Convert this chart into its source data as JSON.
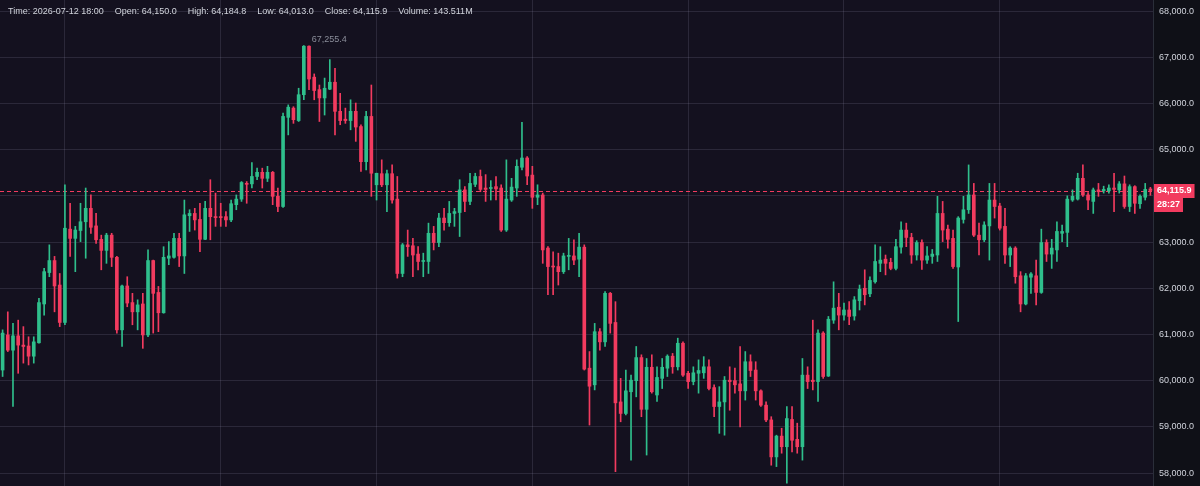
{
  "chart_data": {
    "type": "candlestick",
    "categories": [
      null,
      null,
      null,
      null,
      null,
      null,
      null,
      null,
      null,
      null,
      null,
      null,
      null,
      null,
      null,
      null,
      null,
      null,
      null,
      null,
      null,
      null,
      null,
      null,
      null,
      null,
      null,
      null,
      null,
      null,
      null,
      null,
      null,
      null,
      null,
      null,
      null,
      null,
      null,
      null,
      null,
      null,
      null,
      null,
      null,
      null,
      null,
      null,
      null,
      null,
      null,
      null,
      null,
      null,
      null,
      null,
      null,
      null,
      null,
      null,
      null,
      null,
      null,
      null,
      null,
      null,
      null,
      null,
      null,
      null,
      null,
      null,
      null,
      null,
      null,
      null,
      null,
      null,
      null,
      null,
      null,
      null,
      null,
      null,
      null,
      null,
      null,
      null,
      null,
      null,
      null,
      null,
      null,
      null,
      null,
      null,
      null,
      null,
      null,
      null,
      null,
      null,
      null,
      null,
      null,
      null,
      null,
      null,
      null,
      null,
      null,
      null,
      null,
      null,
      null,
      null,
      null,
      null,
      null,
      null,
      null,
      null,
      null,
      null,
      null,
      null,
      null,
      null,
      null,
      null,
      null,
      null,
      null,
      null,
      null,
      null,
      null,
      null,
      null,
      null,
      null,
      null,
      null,
      null,
      null,
      null,
      null,
      null,
      null,
      null,
      null,
      null,
      null,
      null,
      null,
      null,
      null,
      null,
      null,
      null,
      null,
      null,
      null,
      null,
      null,
      null,
      null,
      null,
      null,
      null,
      null,
      null,
      null,
      null,
      null,
      null,
      null,
      null,
      null,
      null,
      null,
      null,
      null,
      null,
      null,
      null,
      null,
      null,
      null,
      null,
      null,
      null,
      null,
      null,
      null,
      null,
      null,
      null,
      null,
      null,
      null,
      null,
      null,
      null,
      null,
      null,
      null,
      null,
      null,
      null,
      null,
      null,
      null,
      null,
      null,
      null,
      null,
      null,
      null,
      null,
      null,
      null
    ],
    "ohlc": [
      [
        60230,
        61100,
        60090,
        61030
      ],
      [
        60990,
        61490,
        60630,
        60660
      ],
      [
        60660,
        61240,
        59440,
        60970
      ],
      [
        60970,
        61310,
        60160,
        60770
      ],
      [
        60770,
        61170,
        60380,
        60740
      ],
      [
        60750,
        60950,
        60340,
        60530
      ],
      [
        60530,
        60950,
        60380,
        60840
      ],
      [
        60820,
        61780,
        60810,
        61690
      ],
      [
        61660,
        62430,
        61420,
        62360
      ],
      [
        62340,
        62940,
        62250,
        62600
      ],
      [
        62600,
        62690,
        61490,
        62050
      ],
      [
        62070,
        62320,
        61170,
        61260
      ],
      [
        61260,
        64240,
        61210,
        63300
      ],
      [
        63280,
        63840,
        62690,
        63080
      ],
      [
        63080,
        63340,
        62360,
        63260
      ],
      [
        63250,
        63840,
        63010,
        63440
      ],
      [
        63440,
        64170,
        62650,
        63730
      ],
      [
        63730,
        64020,
        63190,
        63320
      ],
      [
        63350,
        63620,
        62970,
        63050
      ],
      [
        63060,
        63150,
        62400,
        62820
      ],
      [
        62820,
        63190,
        62540,
        63150
      ],
      [
        63150,
        63190,
        62470,
        62670
      ],
      [
        62670,
        62690,
        61030,
        61100
      ],
      [
        61100,
        62070,
        60740,
        62050
      ],
      [
        62050,
        62250,
        61600,
        61680
      ],
      [
        61690,
        61890,
        61210,
        61490
      ],
      [
        61490,
        61750,
        61100,
        61640
      ],
      [
        61660,
        61890,
        60700,
        60990
      ],
      [
        60990,
        62830,
        60950,
        62600
      ],
      [
        62600,
        62610,
        61030,
        61890
      ],
      [
        61910,
        62040,
        61060,
        61470
      ],
      [
        61470,
        62900,
        61460,
        62670
      ],
      [
        62650,
        63010,
        62510,
        62700
      ],
      [
        62670,
        63190,
        62650,
        63080
      ],
      [
        63080,
        63190,
        62470,
        62700
      ],
      [
        62700,
        63910,
        62320,
        63590
      ],
      [
        63570,
        63700,
        63230,
        63620
      ],
      [
        63620,
        63730,
        63260,
        63480
      ],
      [
        63490,
        63840,
        62790,
        63060
      ],
      [
        63060,
        63880,
        63050,
        63730
      ],
      [
        63730,
        64350,
        63050,
        63550
      ],
      [
        63550,
        64060,
        63340,
        63530
      ],
      [
        63550,
        63840,
        63340,
        63530
      ],
      [
        63550,
        63660,
        63340,
        63480
      ],
      [
        63480,
        63910,
        63440,
        63830
      ],
      [
        63810,
        64020,
        63700,
        63930
      ],
      [
        63930,
        64310,
        63880,
        64290
      ],
      [
        64270,
        64310,
        63840,
        64250
      ],
      [
        64260,
        64720,
        64170,
        64420
      ],
      [
        64420,
        64600,
        64350,
        64510
      ],
      [
        64510,
        64600,
        64170,
        64380
      ],
      [
        64380,
        64640,
        64310,
        64510
      ],
      [
        64510,
        64530,
        63810,
        63990
      ],
      [
        63990,
        64170,
        63660,
        63770
      ],
      [
        63770,
        65790,
        63750,
        65720
      ],
      [
        65700,
        65970,
        65320,
        65920
      ],
      [
        65900,
        65930,
        65570,
        65650
      ],
      [
        65630,
        66330,
        65610,
        66190
      ],
      [
        66190,
        67255.4,
        66080,
        67240
      ],
      [
        67240,
        67250,
        66300,
        66530
      ],
      [
        66570,
        66640,
        66080,
        66280
      ],
      [
        66300,
        66400,
        65610,
        66120
      ],
      [
        66120,
        66550,
        65750,
        66330
      ],
      [
        66310,
        66950,
        66300,
        66460
      ],
      [
        66460,
        66760,
        65320,
        65830
      ],
      [
        65830,
        66220,
        65540,
        65630
      ],
      [
        65660,
        65900,
        65570,
        65630
      ],
      [
        65630,
        66080,
        65430,
        65830
      ],
      [
        65830,
        66010,
        65180,
        65490
      ],
      [
        65500,
        65540,
        64530,
        64740
      ],
      [
        64740,
        65830,
        64560,
        65720
      ],
      [
        65720,
        66400,
        63990,
        64490
      ],
      [
        64240,
        64490,
        63910,
        64490
      ],
      [
        64480,
        64780,
        64200,
        64240
      ],
      [
        64240,
        64560,
        63660,
        64480
      ],
      [
        64480,
        64670,
        63840,
        63910
      ],
      [
        63930,
        64420,
        62220,
        62320
      ],
      [
        62320,
        62970,
        62250,
        62940
      ],
      [
        62940,
        63260,
        62690,
        62900
      ],
      [
        62920,
        63080,
        62250,
        62720
      ],
      [
        62740,
        62900,
        62400,
        62580
      ],
      [
        62580,
        62760,
        62250,
        62600
      ],
      [
        62580,
        63410,
        62320,
        63190
      ],
      [
        63190,
        63340,
        62830,
        62990
      ],
      [
        62990,
        63620,
        62900,
        63520
      ],
      [
        63520,
        63730,
        63260,
        63420
      ],
      [
        63420,
        63880,
        63340,
        63620
      ],
      [
        63620,
        63730,
        63340,
        63660
      ],
      [
        63640,
        64350,
        63120,
        64130
      ],
      [
        64130,
        64200,
        63660,
        63880
      ],
      [
        63880,
        64490,
        63810,
        64270
      ],
      [
        64250,
        64490,
        64200,
        64420
      ],
      [
        64420,
        64560,
        64090,
        64140
      ],
      [
        64170,
        64460,
        63880,
        64140
      ],
      [
        64160,
        64330,
        63910,
        64180
      ],
      [
        64200,
        64420,
        63910,
        64150
      ],
      [
        64170,
        64240,
        63230,
        63260
      ],
      [
        63260,
        64780,
        63230,
        63930
      ],
      [
        63910,
        64380,
        63880,
        64190
      ],
      [
        64170,
        64780,
        63990,
        64640
      ],
      [
        64620,
        65590,
        64560,
        64820
      ],
      [
        64820,
        64850,
        64240,
        64430
      ],
      [
        64450,
        64640,
        63730,
        63970
      ],
      [
        63970,
        64240,
        63810,
        64020
      ],
      [
        64020,
        64060,
        62540,
        62830
      ],
      [
        62870,
        62900,
        61860,
        62470
      ],
      [
        62480,
        62790,
        61860,
        62460
      ],
      [
        62470,
        62760,
        62070,
        62360
      ],
      [
        62360,
        62760,
        62320,
        62700
      ],
      [
        62690,
        63080,
        62400,
        62700
      ],
      [
        62700,
        63050,
        62510,
        62610
      ],
      [
        62630,
        63190,
        62250,
        62890
      ],
      [
        62890,
        62940,
        60230,
        60250
      ],
      [
        60270,
        60630,
        59040,
        59880
      ],
      [
        59910,
        61240,
        59800,
        61060
      ],
      [
        61060,
        61130,
        60660,
        60840
      ],
      [
        60840,
        61930,
        60740,
        61890
      ],
      [
        61890,
        61910,
        61030,
        61240
      ],
      [
        61260,
        61710,
        58030,
        59520
      ],
      [
        59540,
        60050,
        59110,
        59290
      ],
      [
        59290,
        60230,
        59260,
        59780
      ],
      [
        59760,
        60120,
        58280,
        60010
      ],
      [
        60000,
        60740,
        59650,
        60500
      ],
      [
        60500,
        60560,
        59220,
        59380
      ],
      [
        59380,
        60480,
        58390,
        60290
      ],
      [
        60290,
        60560,
        59730,
        59760
      ],
      [
        59690,
        60300,
        59550,
        60070
      ],
      [
        60050,
        60480,
        59830,
        60290
      ],
      [
        60270,
        60560,
        60090,
        60530
      ],
      [
        60530,
        60590,
        60160,
        60300
      ],
      [
        60300,
        60920,
        60230,
        60810
      ],
      [
        60810,
        60840,
        60090,
        60120
      ],
      [
        60160,
        60200,
        59830,
        59980
      ],
      [
        59980,
        60300,
        59910,
        60170
      ],
      [
        60160,
        60450,
        59730,
        60220
      ],
      [
        60170,
        60520,
        60050,
        60300
      ],
      [
        60300,
        60450,
        59800,
        59830
      ],
      [
        59850,
        59910,
        59220,
        59440
      ],
      [
        59440,
        59870,
        58860,
        59540
      ],
      [
        59540,
        60090,
        58820,
        60010
      ],
      [
        60010,
        60300,
        59360,
        59980
      ],
      [
        60000,
        60270,
        59730,
        59910
      ],
      [
        59930,
        60740,
        59000,
        59780
      ],
      [
        59780,
        60630,
        59580,
        60410
      ],
      [
        60410,
        60560,
        60090,
        60220
      ],
      [
        60230,
        60410,
        59580,
        59780
      ],
      [
        59780,
        59800,
        59440,
        59470
      ],
      [
        59470,
        59540,
        59110,
        59150
      ],
      [
        59150,
        59220,
        58170,
        58350
      ],
      [
        58350,
        58820,
        58140,
        58800
      ],
      [
        58800,
        58970,
        58430,
        58570
      ],
      [
        58570,
        59440,
        57780,
        59180
      ],
      [
        59160,
        59440,
        58460,
        58710
      ],
      [
        58730,
        59080,
        58430,
        58570
      ],
      [
        58570,
        60480,
        58280,
        60120
      ],
      [
        60120,
        60300,
        59830,
        59980
      ],
      [
        60010,
        61310,
        59800,
        59980
      ],
      [
        59980,
        61100,
        59550,
        61030
      ],
      [
        61030,
        61060,
        60050,
        60090
      ],
      [
        60100,
        61390,
        60090,
        61330
      ],
      [
        61310,
        62140,
        61240,
        61570
      ],
      [
        61590,
        61890,
        61100,
        61420
      ],
      [
        61420,
        61680,
        61310,
        61530
      ],
      [
        61530,
        61710,
        61210,
        61390
      ],
      [
        61400,
        61820,
        61310,
        61750
      ],
      [
        61730,
        62070,
        61530,
        61980
      ],
      [
        62000,
        62400,
        61640,
        61860
      ],
      [
        61880,
        62250,
        61820,
        62170
      ],
      [
        62140,
        62940,
        62110,
        62580
      ],
      [
        62540,
        62900,
        62360,
        62610
      ],
      [
        62630,
        62720,
        62290,
        62540
      ],
      [
        62560,
        62650,
        62400,
        62430
      ],
      [
        62430,
        63060,
        62400,
        62900
      ],
      [
        62890,
        63440,
        62760,
        63260
      ],
      [
        63260,
        63410,
        62900,
        63100
      ],
      [
        63100,
        63190,
        62540,
        62720
      ],
      [
        62720,
        63030,
        62610,
        62990
      ],
      [
        62990,
        63050,
        62410,
        62610
      ],
      [
        62610,
        62900,
        62540,
        62700
      ],
      [
        62690,
        62840,
        62540,
        62740
      ],
      [
        62720,
        63990,
        62580,
        63620
      ],
      [
        63620,
        63880,
        63010,
        63260
      ],
      [
        63280,
        63370,
        62870,
        63060
      ],
      [
        63080,
        63260,
        62430,
        62470
      ],
      [
        62460,
        63550,
        61280,
        63520
      ],
      [
        63490,
        63990,
        63410,
        63700
      ],
      [
        63700,
        64670,
        63620,
        64020
      ],
      [
        64020,
        64270,
        63120,
        63150
      ],
      [
        63150,
        63410,
        62720,
        63050
      ],
      [
        63050,
        63440,
        63010,
        63370
      ],
      [
        63350,
        64270,
        62610,
        63910
      ],
      [
        63910,
        64270,
        63520,
        63770
      ],
      [
        63780,
        63840,
        63260,
        63300
      ],
      [
        63340,
        63730,
        62540,
        62720
      ],
      [
        62720,
        62900,
        62470,
        62870
      ],
      [
        62870,
        62900,
        62110,
        62250
      ],
      [
        62270,
        62360,
        61490,
        61660
      ],
      [
        61660,
        62320,
        61640,
        62270
      ],
      [
        62240,
        62340,
        61890,
        62310
      ],
      [
        62270,
        62610,
        61640,
        61910
      ],
      [
        61910,
        63280,
        61890,
        62990
      ],
      [
        62990,
        63050,
        62580,
        62740
      ],
      [
        62740,
        63060,
        62430,
        62870
      ],
      [
        62830,
        63440,
        62580,
        63230
      ],
      [
        63190,
        63370,
        63010,
        63230
      ],
      [
        63210,
        64000,
        62900,
        63930
      ],
      [
        63910,
        64130,
        63880,
        63990
      ],
      [
        63930,
        64490,
        63910,
        64380
      ],
      [
        64380,
        64670,
        63990,
        64020
      ],
      [
        64020,
        64070,
        63700,
        63910
      ],
      [
        63880,
        64170,
        63620,
        64130
      ],
      [
        64130,
        64270,
        63990,
        64090
      ],
      [
        64110,
        64210,
        64060,
        64140
      ],
      [
        64110,
        64240,
        64060,
        64170
      ],
      [
        64170,
        64490,
        63660,
        64140
      ],
      [
        64130,
        64310,
        64060,
        64260
      ],
      [
        64260,
        64430,
        63730,
        63770
      ],
      [
        63770,
        64240,
        63660,
        64200
      ],
      [
        64200,
        64220,
        63620,
        63840
      ],
      [
        63830,
        64020,
        63730,
        63990
      ],
      [
        63970,
        64270,
        63910,
        64140
      ],
      [
        64150,
        64184.8,
        64013,
        64115.9
      ]
    ],
    "ylim": [
      57720,
      68240
    ],
    "yticks": [
      {
        "value": 58000,
        "label": "58,000.0"
      },
      {
        "value": 59000,
        "label": "59,000.0"
      },
      {
        "value": 60000,
        "label": "60,000.0"
      },
      {
        "value": 61000,
        "label": "61,000.0"
      },
      {
        "value": 62000,
        "label": "62,000.0"
      },
      {
        "value": 63000,
        "label": "63,000.0"
      },
      {
        "value": 64000,
        "label": null
      },
      {
        "value": 65000,
        "label": "65,000.0"
      },
      {
        "value": 66000,
        "label": "66,000.0"
      },
      {
        "value": 67000,
        "label": "67,000.0"
      },
      {
        "value": 68000,
        "label": "68,000.0"
      }
    ],
    "grid": true,
    "tick_labels": "y",
    "ref_lines": [
      {
        "axis": "y",
        "value": 64115.9,
        "label": "64,115.9",
        "color": "#f23b5f",
        "line_style": "dashed"
      }
    ],
    "annotations": [
      "Time: 2026-07-12 18:00",
      "Open: 64,150.0",
      "High: 64,184.8",
      "Low: 64,013.0",
      "Close: 64,115.9",
      "Volume: 143.511M",
      "67,255.4",
      "28:27"
    ]
  }
}
